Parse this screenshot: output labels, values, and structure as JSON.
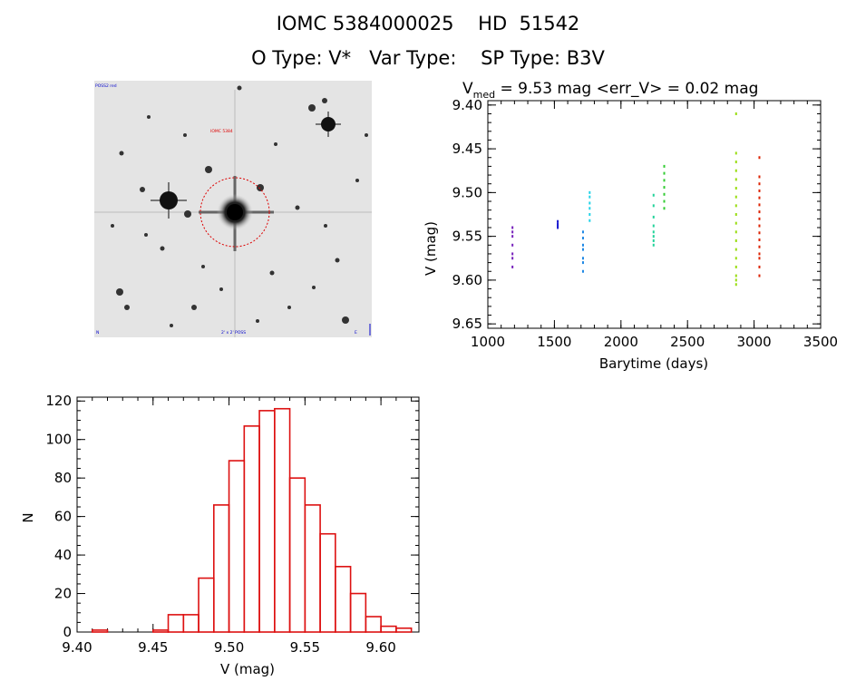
{
  "header": {
    "line1": "IOMC 5384000025    HD  51542",
    "line2": "O Type: V*   Var Type:    SP Type: B3V"
  },
  "image_panel": {
    "corner_tl": "POSS2 red",
    "target_label": "IOMC 5384",
    "corner_bl": "N",
    "bottom_label": "2' x 2' POSS",
    "corner_br": "E"
  },
  "chart_data": [
    {
      "type": "scatter",
      "title_prefix": "V",
      "title_sub": "med",
      "title_rest": " = 9.53 mag <err_V> = 0.02 mag",
      "xlabel": "Barytime (days)",
      "ylabel": "V (mag)",
      "xlim": [
        1000,
        3500
      ],
      "ylim": [
        9.655,
        9.395
      ],
      "xticks": [
        1000,
        1500,
        2000,
        2500,
        3000,
        3500
      ],
      "yticks": [
        9.4,
        9.45,
        9.5,
        9.55,
        9.6,
        9.65
      ],
      "ytick_labels": [
        "9.40",
        "9.45",
        "9.50",
        "9.55",
        "9.60",
        "9.65"
      ],
      "groups": [
        {
          "x": 1185,
          "y": [
            9.54,
            9.545,
            9.55,
            9.56,
            9.57,
            9.575,
            9.585
          ],
          "color": "#7722bb"
        },
        {
          "x": 1525,
          "y": [
            9.533,
            9.536,
            9.538,
            9.54
          ],
          "color": "#1b1bd0"
        },
        {
          "x": 1715,
          "y": [
            9.545,
            9.552,
            9.56,
            9.565,
            9.575,
            9.58,
            9.59
          ],
          "color": "#1e88e5"
        },
        {
          "x": 1765,
          "y": [
            9.5,
            9.505,
            9.512,
            9.518,
            9.525,
            9.532
          ],
          "color": "#22d3e8"
        },
        {
          "x": 2245,
          "y": [
            9.503,
            9.515,
            9.528,
            9.538,
            9.545,
            9.55,
            9.555,
            9.56
          ],
          "color": "#22d39a"
        },
        {
          "x": 2325,
          "y": [
            9.47,
            9.478,
            9.486,
            9.494,
            9.502,
            9.51,
            9.518
          ],
          "color": "#33cc33"
        },
        {
          "x": 2865,
          "y": [
            9.41,
            9.455,
            9.465,
            9.475,
            9.485,
            9.495,
            9.505,
            9.515,
            9.525,
            9.535,
            9.545,
            9.555,
            9.565,
            9.575,
            9.585,
            9.595,
            9.6,
            9.605
          ],
          "color": "#99dd11"
        },
        {
          "x": 3040,
          "y": [
            9.46,
            9.482,
            9.49,
            9.498,
            9.506,
            9.514,
            9.522,
            9.53,
            9.538,
            9.546,
            9.554,
            9.562,
            9.57,
            9.575,
            9.585,
            9.595
          ],
          "color": "#dd2200"
        }
      ]
    },
    {
      "type": "bar",
      "xlabel": "V (mag)",
      "ylabel": "N",
      "xlim": [
        9.4,
        9.625
      ],
      "ylim": [
        0,
        122
      ],
      "xticks": [
        9.4,
        9.45,
        9.5,
        9.55,
        9.6
      ],
      "xtick_labels": [
        "9.40",
        "9.45",
        "9.50",
        "9.55",
        "9.60"
      ],
      "yticks": [
        0,
        20,
        40,
        60,
        80,
        100,
        120
      ],
      "bin_width": 0.01,
      "bins": [
        {
          "start": 9.41,
          "value": 1
        },
        {
          "start": 9.45,
          "value": 1
        },
        {
          "start": 9.46,
          "value": 9
        },
        {
          "start": 9.47,
          "value": 9
        },
        {
          "start": 9.48,
          "value": 28
        },
        {
          "start": 9.49,
          "value": 66
        },
        {
          "start": 9.5,
          "value": 89
        },
        {
          "start": 9.51,
          "value": 107
        },
        {
          "start": 9.52,
          "value": 115
        },
        {
          "start": 9.53,
          "value": 116
        },
        {
          "start": 9.54,
          "value": 80
        },
        {
          "start": 9.55,
          "value": 66
        },
        {
          "start": 9.56,
          "value": 51
        },
        {
          "start": 9.57,
          "value": 34
        },
        {
          "start": 9.58,
          "value": 20
        },
        {
          "start": 9.59,
          "value": 8
        },
        {
          "start": 9.6,
          "value": 3
        },
        {
          "start": 9.61,
          "value": 2
        }
      ],
      "bar_color": "#dd1111"
    }
  ]
}
